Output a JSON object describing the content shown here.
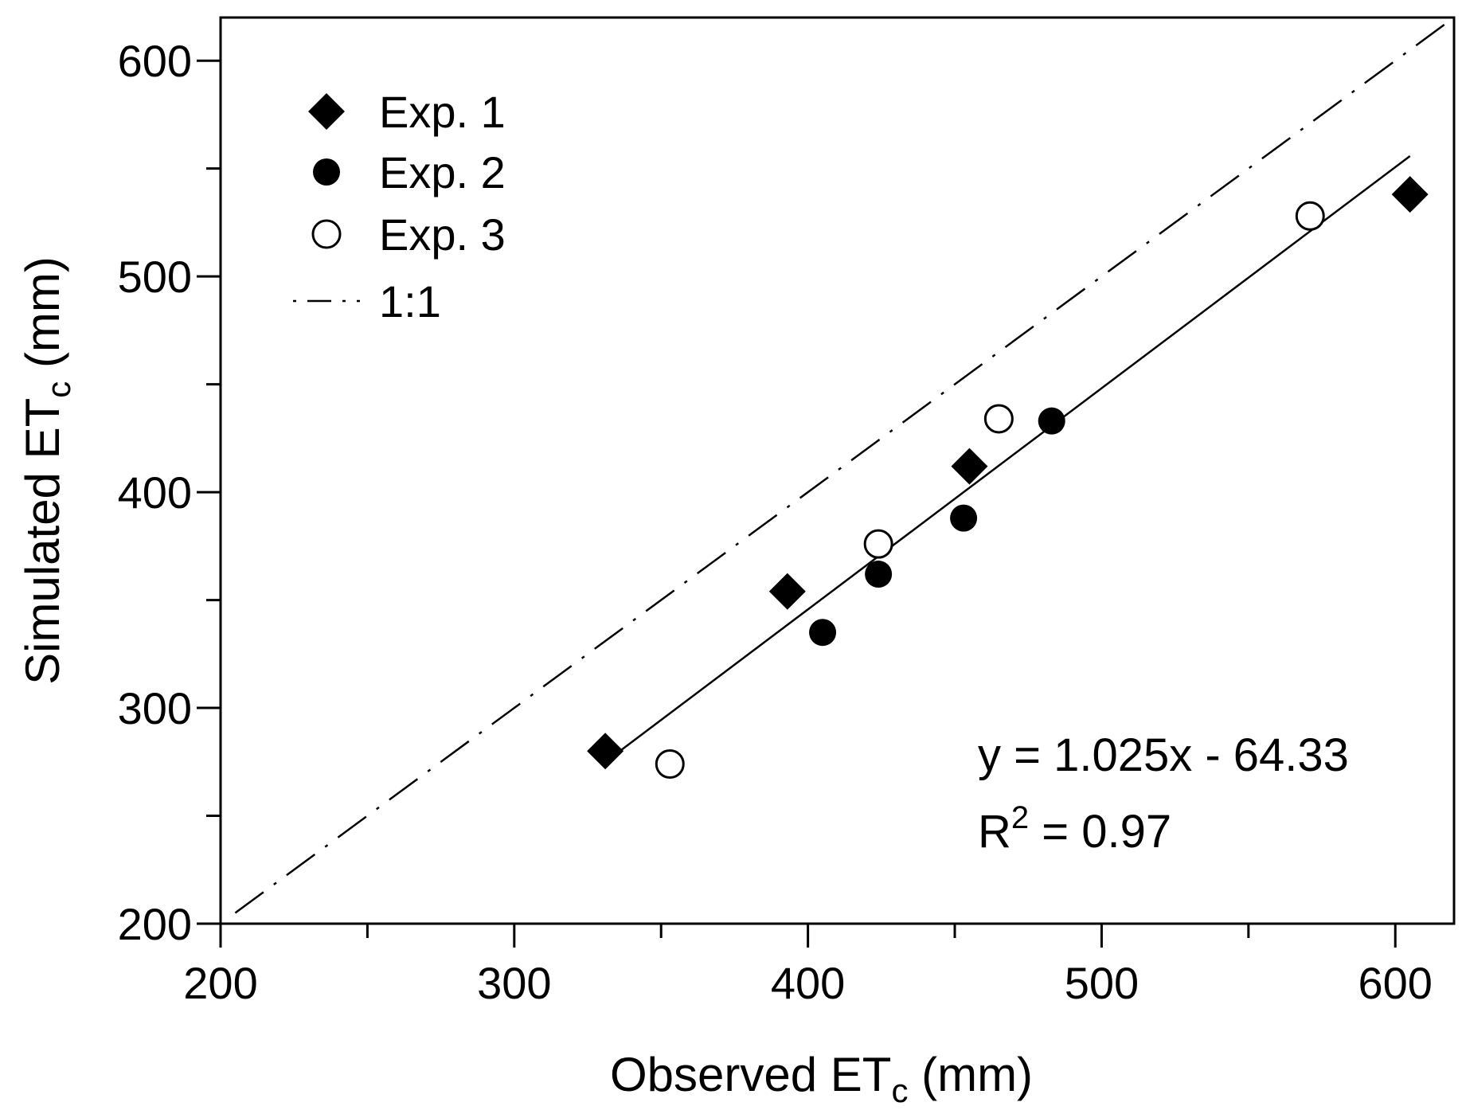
{
  "chart_data": {
    "type": "scatter",
    "title": "",
    "xlabel": "Observed ET",
    "xlabel_sub": "c",
    "xlabel_suffix": " (mm)",
    "ylabel": "Simulated ET",
    "ylabel_sub": "c",
    "ylabel_suffix": " (mm)",
    "xlim": [
      200,
      620
    ],
    "ylim": [
      200,
      620
    ],
    "xticks": [
      200,
      300,
      400,
      500,
      600
    ],
    "yticks": [
      200,
      300,
      400,
      500,
      600
    ],
    "xminor": [
      250,
      350,
      450,
      550
    ],
    "yminor": [
      250,
      350,
      450,
      550
    ],
    "grid": false,
    "legend_position": "top-left",
    "series": [
      {
        "name": "Exp. 1",
        "marker": "diamond-filled",
        "x": [
          331,
          393,
          455,
          605
        ],
        "y": [
          280,
          354,
          412,
          538
        ]
      },
      {
        "name": "Exp. 2",
        "marker": "circle-filled",
        "x": [
          405,
          424,
          453,
          483
        ],
        "y": [
          335,
          362,
          388,
          433
        ]
      },
      {
        "name": "Exp. 3",
        "marker": "circle-open",
        "x": [
          353,
          424,
          465,
          571
        ],
        "y": [
          274,
          376,
          434,
          528
        ]
      }
    ],
    "reference_line": {
      "name": "1:1",
      "style": "dash-dot",
      "x": [
        205,
        620
      ],
      "y": [
        205,
        620
      ]
    },
    "fit_line": {
      "slope": 1.025,
      "intercept": -64.33,
      "x_range": [
        335,
        605
      ]
    },
    "annotations": {
      "equation": "y = 1.025x - 64.33",
      "r2_label": "R",
      "r2_sup": "2",
      "r2_value": " = 0.97"
    },
    "colors": {
      "ink": "#000000",
      "background": "#ffffff"
    }
  }
}
